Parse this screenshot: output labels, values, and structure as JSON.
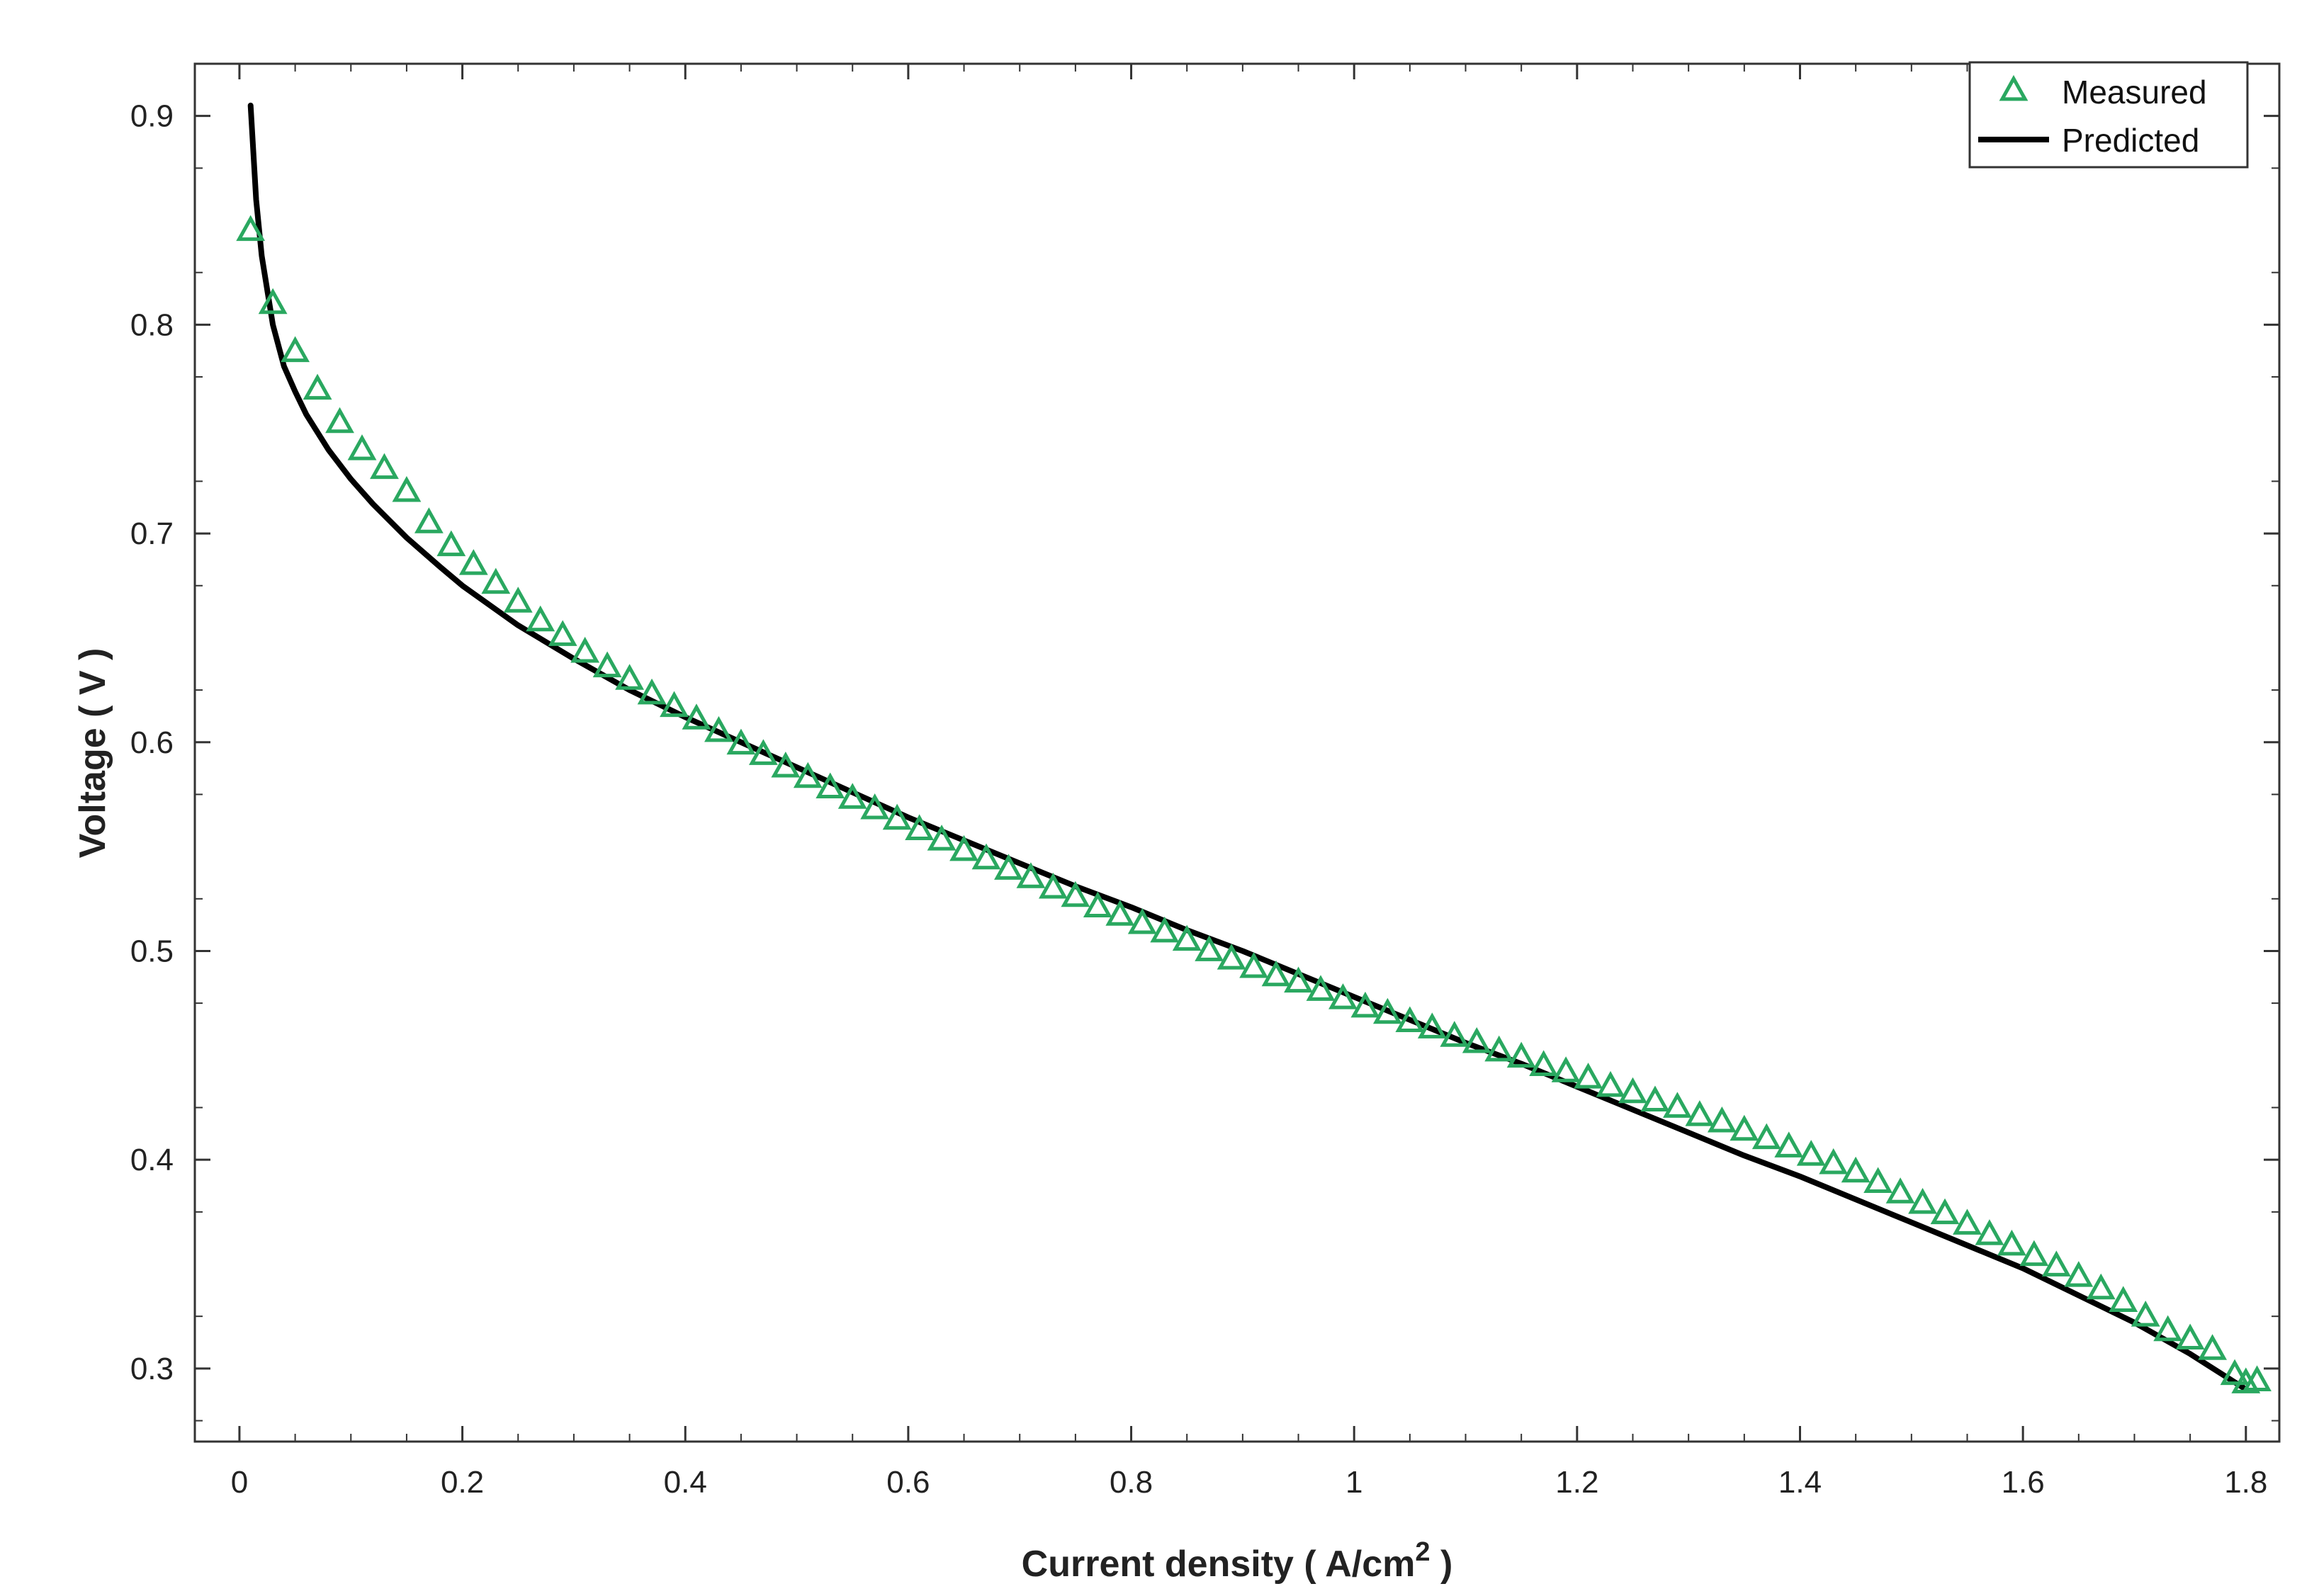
{
  "chart_data": {
    "type": "line",
    "title": "",
    "xlabel": "Current density ( A/cm",
    "xlabel_superscript": "2",
    "xlabel_suffix": " )",
    "ylabel": "Voltage ( V )",
    "xlim": [
      -0.04,
      1.83
    ],
    "ylim": [
      0.265,
      0.925
    ],
    "x_ticks": [
      0,
      0.2,
      0.4,
      0.6,
      0.8,
      1.0,
      1.2,
      1.4,
      1.6,
      1.8
    ],
    "x_tick_labels": [
      "0",
      "0.2",
      "0.4",
      "0.6",
      "0.8",
      "1",
      "1.2",
      "1.4",
      "1.6",
      "1.8"
    ],
    "y_ticks": [
      0.3,
      0.4,
      0.5,
      0.6,
      0.7,
      0.8,
      0.9
    ],
    "y_tick_labels": [
      "0.3",
      "0.4",
      "0.5",
      "0.6",
      "0.7",
      "0.8",
      "0.9"
    ],
    "grid": false,
    "legend_position": "top-right",
    "series": [
      {
        "name": "Measured",
        "kind": "scatter",
        "marker": "triangle",
        "color": "#2aa860",
        "x": [
          0.01,
          0.03,
          0.05,
          0.07,
          0.09,
          0.11,
          0.13,
          0.15,
          0.17,
          0.19,
          0.21,
          0.23,
          0.25,
          0.27,
          0.29,
          0.31,
          0.33,
          0.35,
          0.37,
          0.39,
          0.41,
          0.43,
          0.45,
          0.47,
          0.49,
          0.51,
          0.53,
          0.55,
          0.57,
          0.59,
          0.61,
          0.63,
          0.65,
          0.67,
          0.69,
          0.71,
          0.73,
          0.75,
          0.77,
          0.79,
          0.81,
          0.83,
          0.85,
          0.87,
          0.89,
          0.91,
          0.93,
          0.95,
          0.97,
          0.99,
          1.01,
          1.03,
          1.05,
          1.07,
          1.09,
          1.11,
          1.13,
          1.15,
          1.17,
          1.19,
          1.21,
          1.23,
          1.25,
          1.27,
          1.29,
          1.31,
          1.33,
          1.35,
          1.37,
          1.39,
          1.41,
          1.43,
          1.45,
          1.47,
          1.49,
          1.51,
          1.53,
          1.55,
          1.57,
          1.59,
          1.61,
          1.63,
          1.65,
          1.67,
          1.69,
          1.71,
          1.73,
          1.75,
          1.77,
          1.79,
          1.8,
          1.81
        ],
        "y": [
          0.845,
          0.81,
          0.787,
          0.769,
          0.753,
          0.74,
          0.731,
          0.72,
          0.705,
          0.694,
          0.685,
          0.676,
          0.667,
          0.658,
          0.651,
          0.643,
          0.636,
          0.63,
          0.623,
          0.617,
          0.611,
          0.605,
          0.599,
          0.594,
          0.588,
          0.583,
          0.578,
          0.573,
          0.568,
          0.563,
          0.558,
          0.553,
          0.548,
          0.544,
          0.539,
          0.535,
          0.53,
          0.526,
          0.521,
          0.517,
          0.513,
          0.509,
          0.505,
          0.5,
          0.496,
          0.492,
          0.488,
          0.485,
          0.481,
          0.477,
          0.473,
          0.47,
          0.466,
          0.463,
          0.459,
          0.456,
          0.452,
          0.449,
          0.445,
          0.442,
          0.439,
          0.435,
          0.432,
          0.428,
          0.425,
          0.421,
          0.418,
          0.414,
          0.41,
          0.406,
          0.402,
          0.398,
          0.394,
          0.389,
          0.384,
          0.379,
          0.374,
          0.369,
          0.364,
          0.359,
          0.354,
          0.349,
          0.344,
          0.338,
          0.332,
          0.325,
          0.318,
          0.314,
          0.309,
          0.297,
          0.293,
          0.294
        ]
      },
      {
        "name": "Predicted",
        "kind": "line",
        "color": "#000000",
        "x": [
          0.01,
          0.015,
          0.02,
          0.03,
          0.04,
          0.05,
          0.06,
          0.08,
          0.1,
          0.12,
          0.15,
          0.18,
          0.2,
          0.25,
          0.3,
          0.35,
          0.4,
          0.45,
          0.5,
          0.55,
          0.6,
          0.65,
          0.7,
          0.75,
          0.8,
          0.85,
          0.9,
          0.95,
          1.0,
          1.05,
          1.1,
          1.15,
          1.2,
          1.25,
          1.3,
          1.35,
          1.4,
          1.45,
          1.5,
          1.55,
          1.6,
          1.65,
          1.7,
          1.75,
          1.8
        ],
        "y": [
          0.905,
          0.86,
          0.833,
          0.8,
          0.78,
          0.768,
          0.757,
          0.74,
          0.726,
          0.714,
          0.698,
          0.684,
          0.675,
          0.656,
          0.64,
          0.625,
          0.612,
          0.6,
          0.588,
          0.576,
          0.564,
          0.553,
          0.542,
          0.531,
          0.521,
          0.51,
          0.5,
          0.489,
          0.478,
          0.467,
          0.456,
          0.446,
          0.435,
          0.424,
          0.413,
          0.402,
          0.392,
          0.381,
          0.37,
          0.359,
          0.348,
          0.335,
          0.322,
          0.307,
          0.29
        ]
      }
    ]
  }
}
